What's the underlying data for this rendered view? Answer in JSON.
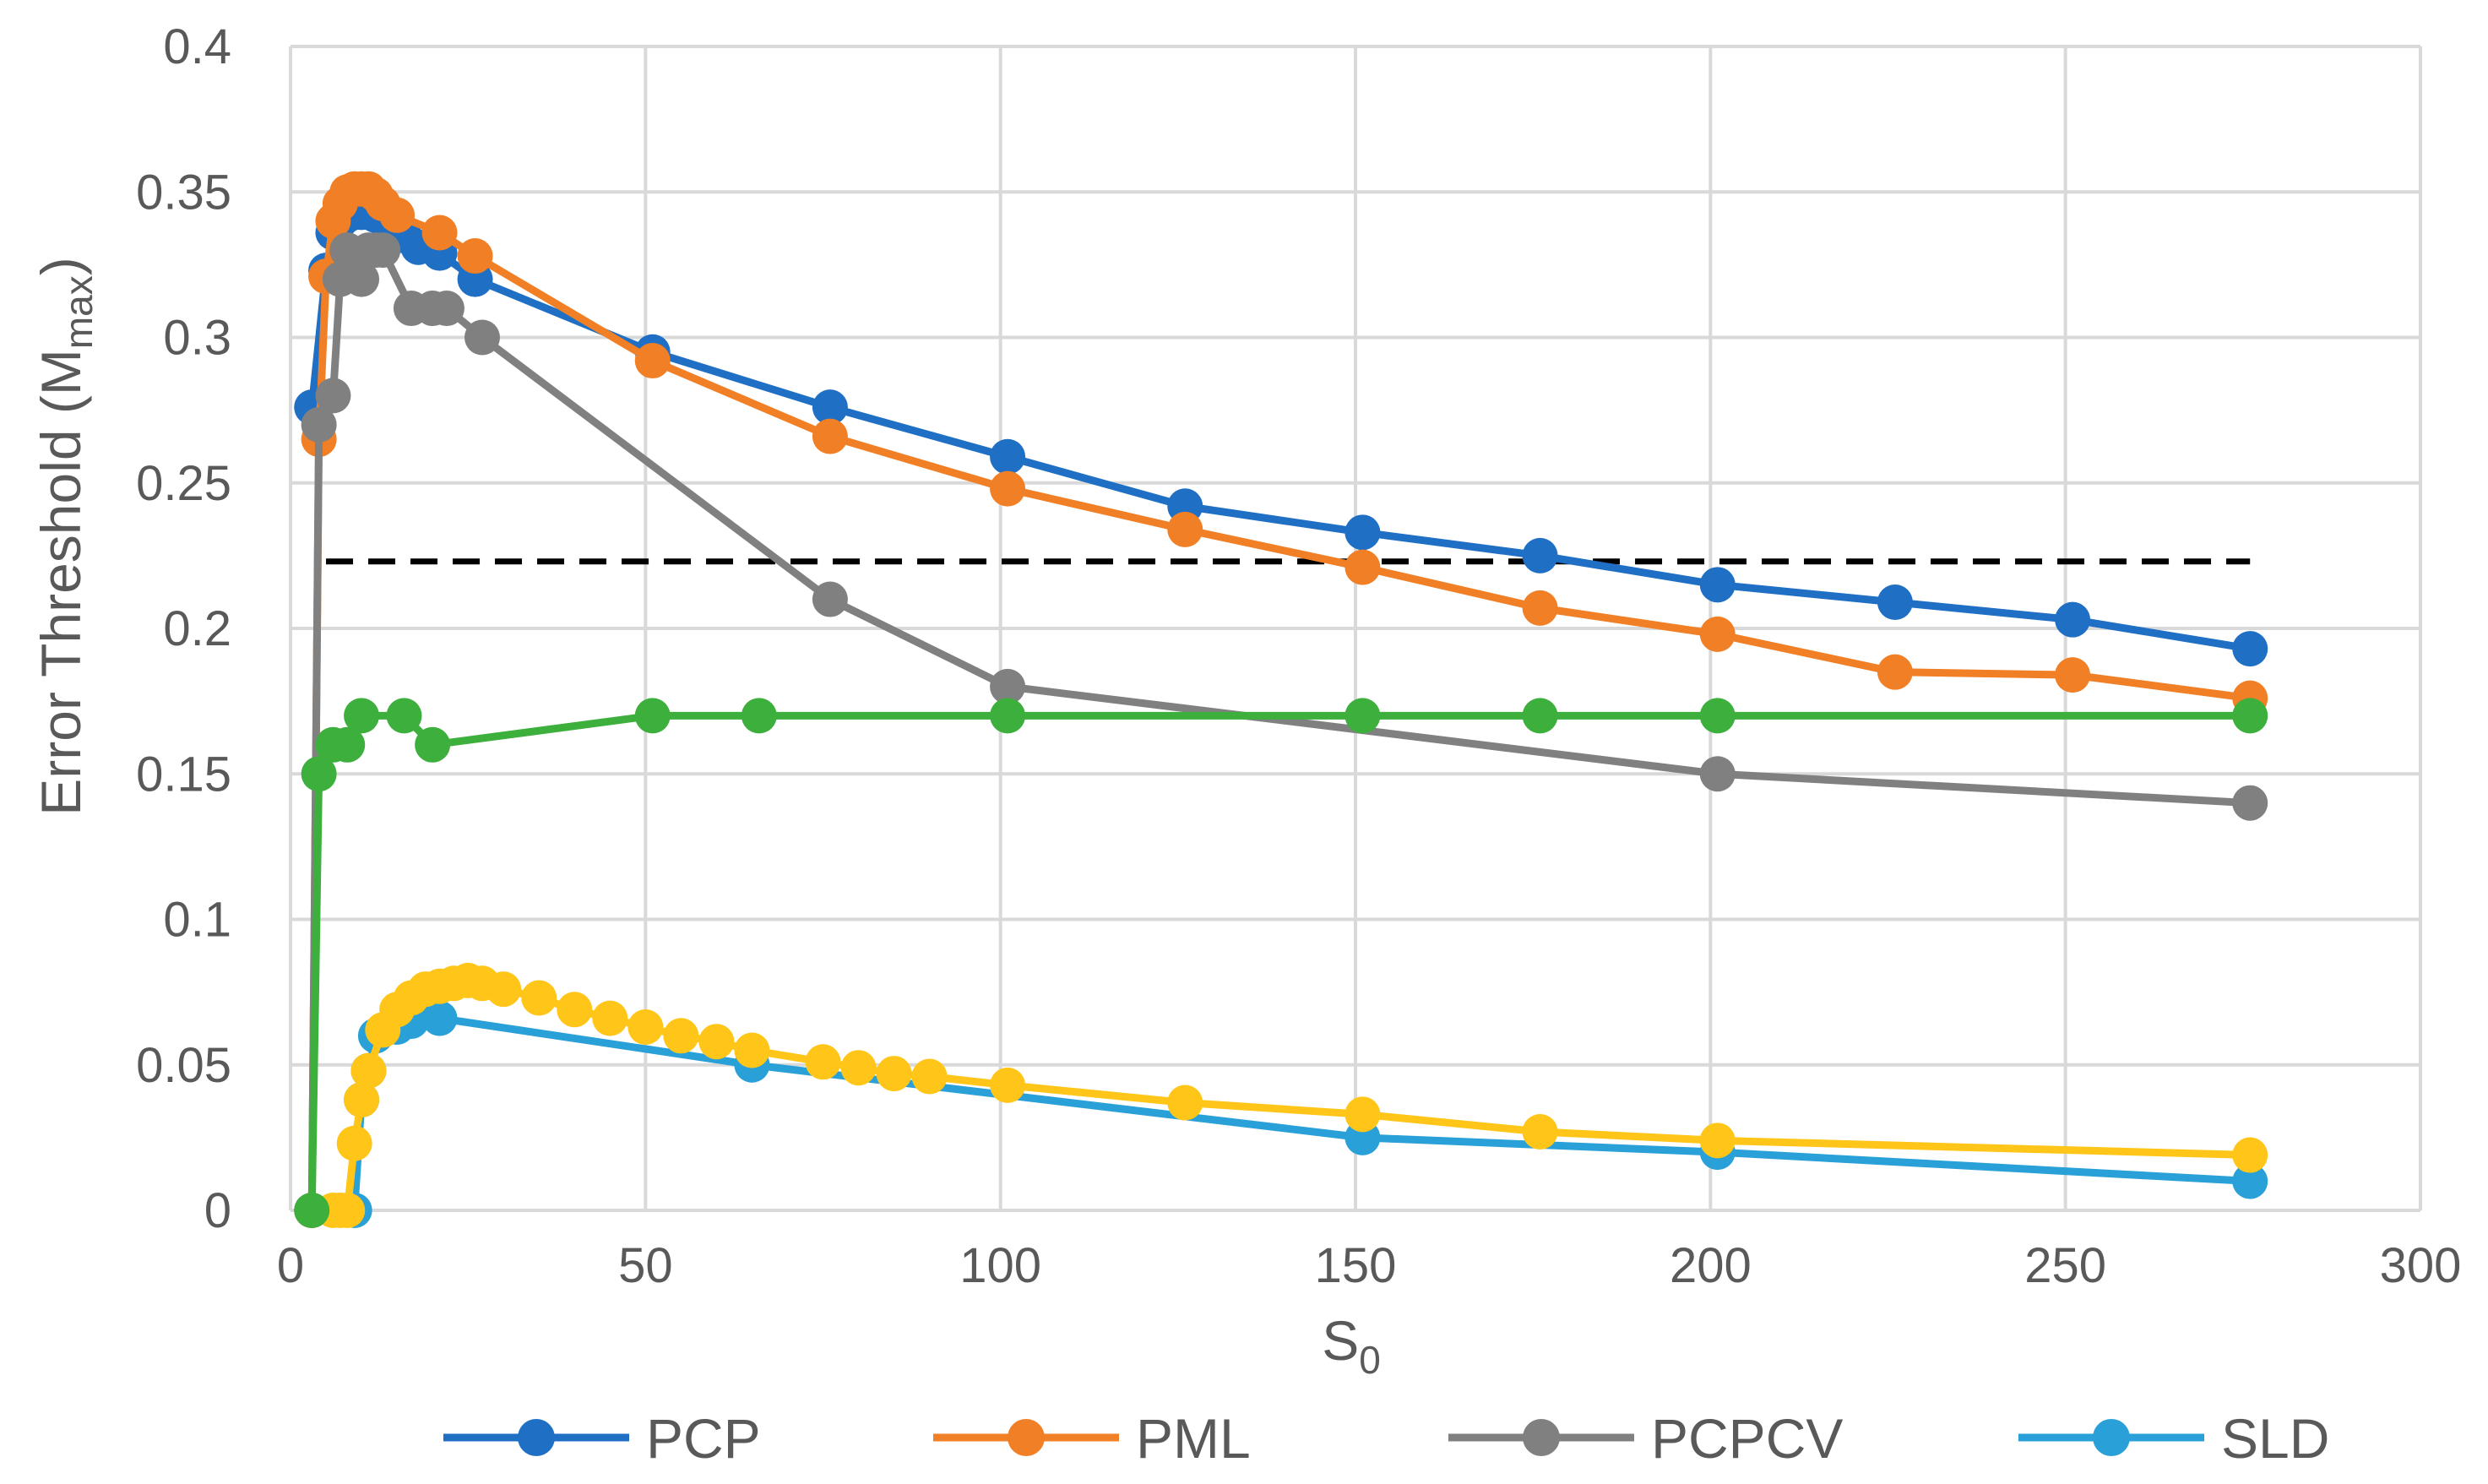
{
  "chart_data": {
    "type": "line",
    "xlabel": "S",
    "xlabel_sub": "0",
    "ylabel": "Error Threshold (M",
    "ylabel_sub": "max",
    "ylabel_close": ")",
    "xlim": [
      0,
      300
    ],
    "ylim": [
      0,
      0.4
    ],
    "x_ticks": [
      0,
      50,
      100,
      150,
      200,
      250,
      300
    ],
    "y_ticks": [
      0,
      0.05,
      0.1,
      0.15,
      0.2,
      0.25,
      0.3,
      0.35,
      0.4
    ],
    "x_tick_labels": [
      "0",
      "50",
      "100",
      "150",
      "200",
      "250",
      "300"
    ],
    "y_tick_labels": [
      "0",
      "0.05",
      "0.1",
      "0.15",
      "0.2",
      "0.25",
      "0.3",
      "0.35",
      "0.4"
    ],
    "grid": true,
    "legend_position": "bottom",
    "reference_line": {
      "y": 0.223,
      "x_range": [
        5,
        276
      ],
      "style": "dashed",
      "color": "#000000"
    },
    "series": [
      {
        "name": "PCP",
        "color": "#1f6fc5",
        "x": [
          3,
          5,
          6,
          7,
          8,
          9,
          10,
          11,
          12,
          14,
          16,
          18,
          21,
          26,
          51,
          76,
          101,
          126,
          151,
          176,
          201,
          226,
          251,
          276
        ],
        "y": [
          0.276,
          0.323,
          0.336,
          0.34,
          0.342,
          0.344,
          0.343,
          0.343,
          0.342,
          0.339,
          0.335,
          0.331,
          0.329,
          0.32,
          0.295,
          0.276,
          0.259,
          0.242,
          0.233,
          0.225,
          0.215,
          0.209,
          0.203,
          0.193
        ]
      },
      {
        "name": "PML",
        "color": "#f07f26",
        "x": [
          3,
          4,
          5,
          6,
          7,
          8,
          9,
          10,
          11,
          12,
          13,
          15,
          21,
          26,
          51,
          76,
          101,
          126,
          151,
          176,
          201,
          226,
          251,
          276
        ],
        "y": [
          0,
          0.265,
          0.321,
          0.34,
          0.346,
          0.35,
          0.351,
          0.351,
          0.351,
          0.349,
          0.346,
          0.342,
          0.336,
          0.328,
          0.292,
          0.266,
          0.248,
          0.234,
          0.221,
          0.207,
          0.198,
          0.185,
          0.184,
          0.176
        ]
      },
      {
        "name": "PCPCV",
        "color": "#808080",
        "x": [
          3,
          4,
          6,
          7,
          8,
          10,
          11,
          12,
          13,
          17,
          20,
          22,
          27,
          76,
          101,
          201,
          276
        ],
        "y": [
          0,
          0.27,
          0.28,
          0.32,
          0.33,
          0.32,
          0.33,
          0.33,
          0.33,
          0.31,
          0.31,
          0.31,
          0.3,
          0.21,
          0.18,
          0.15,
          0.14
        ]
      },
      {
        "name": "SLD",
        "color": "#2aa0d8",
        "x": [
          9,
          10,
          11,
          12,
          15,
          17,
          21,
          65,
          151,
          201,
          276
        ],
        "y": [
          0,
          0.038,
          0.048,
          0.06,
          0.063,
          0.065,
          0.066,
          0.05,
          0.025,
          0.02,
          0.01
        ]
      },
      {
        "name": "",
        "color": "#ffc619",
        "x": [
          6,
          7,
          8,
          9,
          10,
          11,
          13,
          15,
          17,
          19,
          21,
          23,
          25,
          27,
          30,
          35,
          40,
          45,
          50,
          55,
          60,
          65,
          75,
          80,
          85,
          90,
          101,
          126,
          151,
          176,
          201,
          276
        ],
        "y": [
          0,
          0,
          0,
          0.023,
          0.038,
          0.048,
          0.062,
          0.069,
          0.073,
          0.076,
          0.077,
          0.078,
          0.079,
          0.078,
          0.076,
          0.073,
          0.069,
          0.066,
          0.063,
          0.06,
          0.058,
          0.055,
          0.051,
          0.049,
          0.047,
          0.046,
          0.043,
          0.037,
          0.033,
          0.027,
          0.024,
          0.019
        ]
      },
      {
        "name": "",
        "color": "#3daf3d",
        "x": [
          3,
          4,
          6,
          8,
          10,
          16,
          20,
          51,
          66,
          101,
          151,
          176,
          201,
          276
        ],
        "y": [
          0,
          0.15,
          0.16,
          0.16,
          0.17,
          0.17,
          0.16,
          0.17,
          0.17,
          0.17,
          0.17,
          0.17,
          0.17,
          0.17
        ]
      }
    ]
  }
}
